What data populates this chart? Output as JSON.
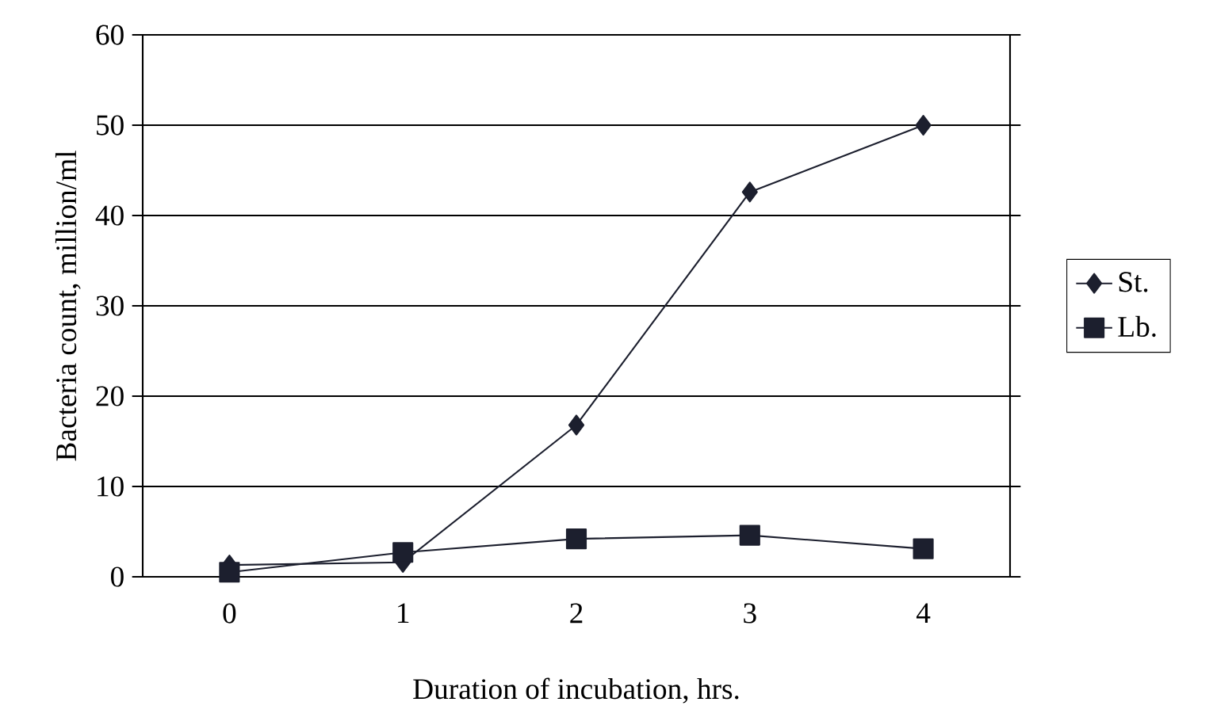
{
  "chart_data": {
    "type": "line",
    "xlabel": "Duration of incubation, hrs.",
    "ylabel": "Bacteria count, million/ml",
    "categories": [
      "0",
      "1",
      "2",
      "3",
      "4"
    ],
    "series": [
      {
        "name": "St.",
        "color": "#1c1f2e",
        "marker": "diamond",
        "values": [
          1.3,
          1.6,
          16.8,
          42.6,
          50
        ]
      },
      {
        "name": "Lb.",
        "color": "#1c1f2e",
        "marker": "square",
        "values": [
          0.5,
          2.7,
          4.2,
          4.6,
          3.1
        ]
      }
    ],
    "ylim": [
      0,
      60
    ],
    "yticks": [
      0,
      10,
      20,
      30,
      40,
      50,
      60
    ],
    "grid": "y",
    "legend": "right",
    "line_style": "solid"
  }
}
